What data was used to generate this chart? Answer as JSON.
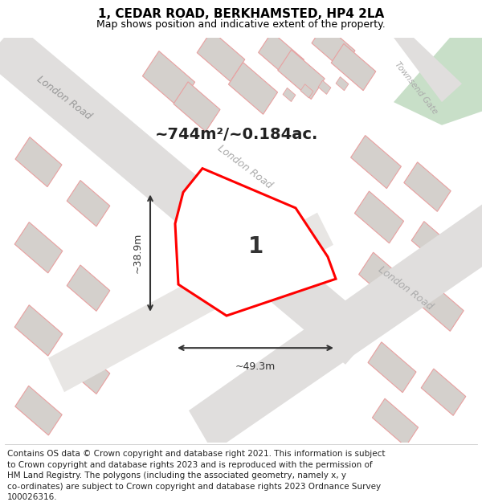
{
  "title": "1, CEDAR ROAD, BERKHAMSTED, HP4 2LA",
  "subtitle": "Map shows position and indicative extent of the property.",
  "footer_lines": [
    "Contains OS data © Crown copyright and database right 2021. This information is subject",
    "to Crown copyright and database rights 2023 and is reproduced with the permission of",
    "HM Land Registry. The polygons (including the associated geometry, namely x, y",
    "co-ordinates) are subject to Crown copyright and database rights 2023 Ordnance Survey",
    "100026316."
  ],
  "area_label": "~744m²/~0.184ac.",
  "plot_number": "1",
  "width_label": "~49.3m",
  "height_label": "~38.9m",
  "map_bg": "#f0eeec",
  "plot_edge": "#ff0000",
  "plot_fill": "#ffffff",
  "green_area": "#c8dfc8",
  "road_fill": "#e0dedd",
  "building_fill": "#d4d0cc",
  "building_edge": "#e8a0a0",
  "title_fontsize": 11,
  "subtitle_fontsize": 9,
  "footer_fontsize": 7.5,
  "road_label_color": "#aaaaaa",
  "annotation_color": "#222222"
}
